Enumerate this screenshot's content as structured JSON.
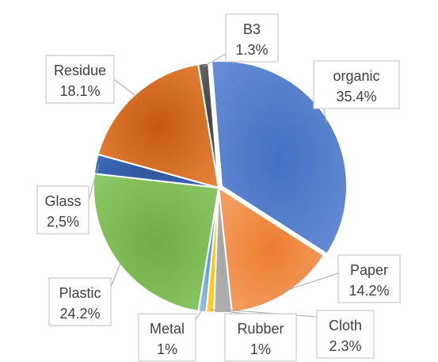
{
  "chart_data": {
    "type": "pie",
    "title": "",
    "start_angle_deg": -4.7,
    "direction": "clockwise",
    "slices": [
      {
        "name": "organic",
        "value": 35.4,
        "label": "35.4%",
        "color": "#6a8fd6",
        "shade": "#4472c4"
      },
      {
        "name": "Paper",
        "value": 14.2,
        "label": "14.2%",
        "color": "#f4a56b",
        "shade": "#ed7d31"
      },
      {
        "name": "Cloth",
        "value": 2.3,
        "label": "2.3%",
        "color": "#b3b3b3",
        "shade": "#a5a5a5"
      },
      {
        "name": "Rubber",
        "value": 1,
        "label": "1%",
        "color": "#ffd54a",
        "shade": "#ffc000"
      },
      {
        "name": "Metal",
        "value": 1,
        "label": "1%",
        "color": "#a9c6ea",
        "shade": "#5b9bd5"
      },
      {
        "name": "Plastic",
        "value": 24.2,
        "label": "24.2%",
        "color": "#8fcc6a",
        "shade": "#70ad47"
      },
      {
        "name": "Glass",
        "value": 2.5,
        "label": "2,5%",
        "color": "#3f6fc4",
        "shade": "#2f5597"
      },
      {
        "name": "Residue",
        "value": 18.1,
        "label": "18.1%",
        "color": "#e8883f",
        "shade": "#c55a11"
      },
      {
        "name": "B3",
        "value": 1.3,
        "label": "1.3%",
        "color": "#6f6f6f",
        "shade": "#404040"
      }
    ]
  }
}
